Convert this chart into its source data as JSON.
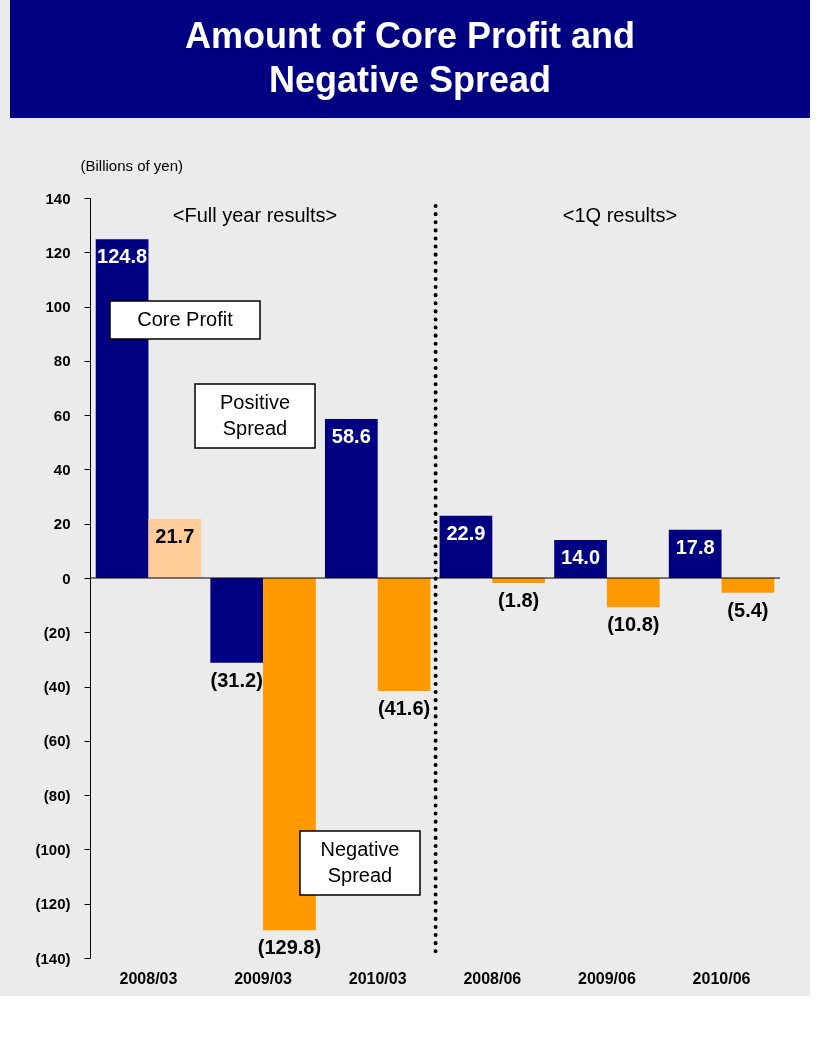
{
  "chart_data": {
    "type": "bar",
    "title": "Amount of Core Profit and\nNegative Spread",
    "ylabel": "(Billions of yen)",
    "categories": [
      "2008/03",
      "2009/03",
      "2010/03",
      "2008/06",
      "2009/06",
      "2010/06"
    ],
    "series": [
      {
        "color": "#000080",
        "values": [
          124.8,
          -31.2,
          58.6,
          22.9,
          14.0,
          17.8
        ],
        "value_labels": [
          "124.8",
          "(31.2)",
          "58.6",
          "22.9",
          "14.0",
          "17.8"
        ]
      },
      {
        "colors": [
          "#ffcc99",
          "#ff9900",
          "#ff9900",
          "#ff9900",
          "#ff9900",
          "#ff9900"
        ],
        "values": [
          21.7,
          -129.8,
          -41.6,
          -1.8,
          -10.8,
          -5.4
        ],
        "value_labels": [
          "21.7",
          "(129.8)",
          "(41.6)",
          "(1.8)",
          "(10.8)",
          "(5.4)"
        ]
      }
    ],
    "ylim": [
      -140,
      140
    ],
    "yticks": [
      {
        "value": -140,
        "label": "(140)"
      },
      {
        "value": -120,
        "label": "(120)"
      },
      {
        "value": -100,
        "label": "(100)"
      },
      {
        "value": -80,
        "label": "(80)"
      },
      {
        "value": -60,
        "label": "(60)"
      },
      {
        "value": -40,
        "label": "(40)"
      },
      {
        "value": -20,
        "label": "(20)"
      },
      0,
      20,
      40,
      60,
      80,
      100,
      120,
      140
    ],
    "grid": false,
    "ref_lines": [
      {
        "axis": "x",
        "value": "2008/06",
        "line_style": "dotted",
        "color": "#000000"
      }
    ],
    "annotations": [
      "<Full year results>",
      "<1Q results>",
      "Core Profit",
      "Positive\nSpread",
      "Negative\nSpread"
    ]
  }
}
